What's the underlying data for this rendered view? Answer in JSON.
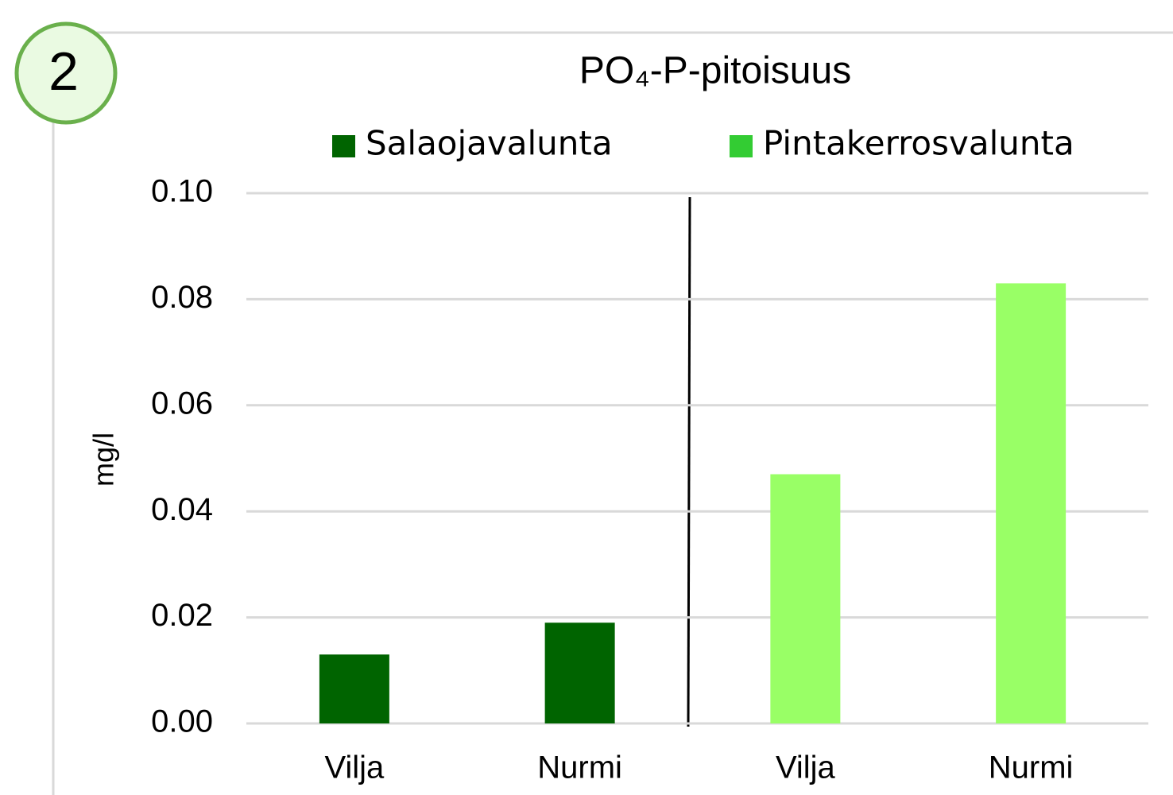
{
  "chart_data": {
    "type": "bar",
    "badge": "2",
    "title": "PO₄-P-pitoisuus",
    "y_label": "mg/l",
    "categories": [
      "Vilja",
      "Nurmi",
      "Vilja",
      "Nurmi"
    ],
    "series": [
      {
        "name": "Salaojavalunta",
        "color": "#006400",
        "legend_color": "#006400",
        "values": [
          0.013,
          0.019,
          null,
          null
        ]
      },
      {
        "name": "Pintakerrosvalunta",
        "color": "#99ff66",
        "legend_color": "#33cc33",
        "values": [
          null,
          null,
          0.047,
          0.083
        ]
      }
    ],
    "ylim": [
      0,
      0.1
    ],
    "yticks": [
      {
        "value": 0,
        "label": "0.00"
      },
      {
        "value": 0.02,
        "label": "0.02"
      },
      {
        "value": 0.04,
        "label": "0.04"
      },
      {
        "value": 0.06,
        "label": "0.06"
      },
      {
        "value": 0.08,
        "label": "0.08"
      },
      {
        "value": 0.1,
        "label": "0.10"
      }
    ],
    "grid": true,
    "legend": "top"
  }
}
